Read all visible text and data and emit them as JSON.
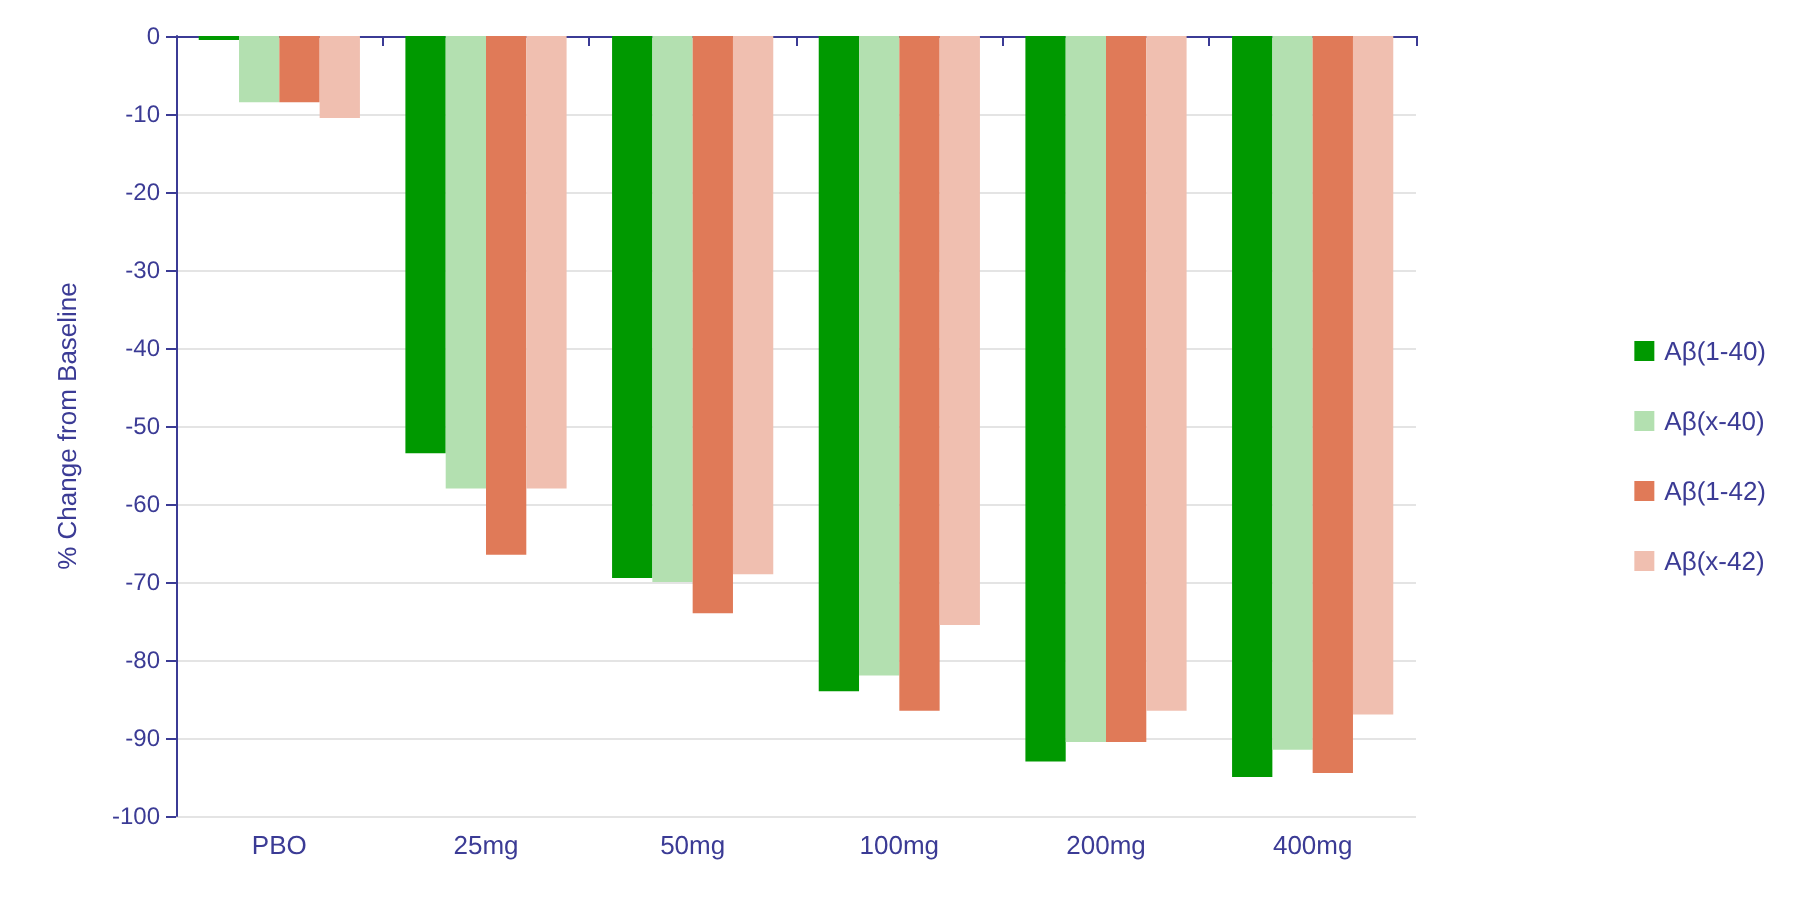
{
  "chart_data": {
    "type": "bar",
    "ylabel": "% Change from Baseline",
    "categories": [
      "PBO",
      "25mg",
      "50mg",
      "100mg",
      "200mg",
      "400mg"
    ],
    "series": [
      {
        "name": "Aβ(1-40)",
        "color": "#009900",
        "values": [
          -0.5,
          -53.5,
          -69.5,
          -84,
          -93,
          -95
        ]
      },
      {
        "name": "Aβ(x-40)",
        "color": "#b3e0b0",
        "values": [
          -8.5,
          -58,
          -70,
          -82,
          -90.5,
          -91.5
        ]
      },
      {
        "name": "Aβ(1-42)",
        "color": "#e07a58",
        "values": [
          -8.5,
          -66.5,
          -74,
          -86.5,
          -90.5,
          -94.5
        ]
      },
      {
        "name": "Aβ(x-42)",
        "color": "#f0bfb0",
        "values": [
          -10.5,
          -58,
          -69,
          -75.5,
          -86.5,
          -87
        ]
      }
    ],
    "ylim": [
      -100,
      0
    ],
    "yticks": [
      0,
      -10,
      -20,
      -30,
      -40,
      -50,
      -60,
      -70,
      -80,
      -90,
      -100
    ],
    "grid": "y",
    "legend": "right"
  }
}
